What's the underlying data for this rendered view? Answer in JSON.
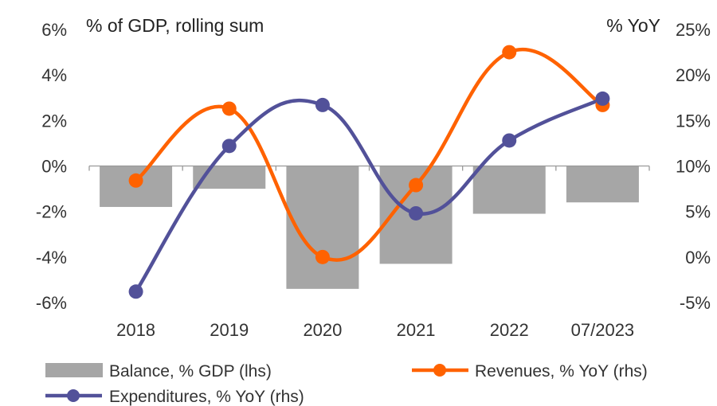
{
  "chart_data": {
    "type": "bar+line",
    "categories": [
      "2018",
      "2019",
      "2020",
      "2021",
      "2022",
      "07/2023"
    ],
    "left_axis": {
      "label": "% of GDP, rolling sum",
      "ylim": [
        -6,
        6
      ],
      "ticks": [
        -6,
        -4,
        -2,
        0,
        2,
        4,
        6
      ],
      "tick_labels": [
        "-6%",
        "-4%",
        "-2%",
        "0%",
        "2%",
        "4%",
        "6%"
      ]
    },
    "right_axis": {
      "label": "% YoY",
      "ylim": [
        -5,
        25
      ],
      "ticks": [
        -5,
        0,
        5,
        10,
        15,
        20,
        25
      ],
      "tick_labels": [
        "-5%",
        "0%",
        "5%",
        "10%",
        "15%",
        "20%",
        "25%"
      ]
    },
    "series": [
      {
        "name": "Balance, % GDP (lhs)",
        "type": "bar",
        "axis": "left",
        "color": "#a6a6a6",
        "values": [
          -1.8,
          -1.0,
          -5.4,
          -4.3,
          -2.1,
          -1.6
        ]
      },
      {
        "name": "Revenues, % YoY (rhs)",
        "type": "line",
        "axis": "right",
        "color": "#ff6200",
        "values": [
          8.4,
          16.3,
          0.0,
          7.9,
          22.5,
          16.7
        ]
      },
      {
        "name": "Expenditures, % YoY (rhs)",
        "type": "line",
        "axis": "right",
        "color": "#525199",
        "values": [
          -3.8,
          12.2,
          16.7,
          4.8,
          12.8,
          17.4
        ]
      }
    ],
    "legend": {
      "position": "bottom",
      "items": [
        "Balance, % GDP (lhs)",
        "Revenues, % YoY (rhs)",
        "Expenditures, % YoY (rhs)"
      ]
    }
  }
}
